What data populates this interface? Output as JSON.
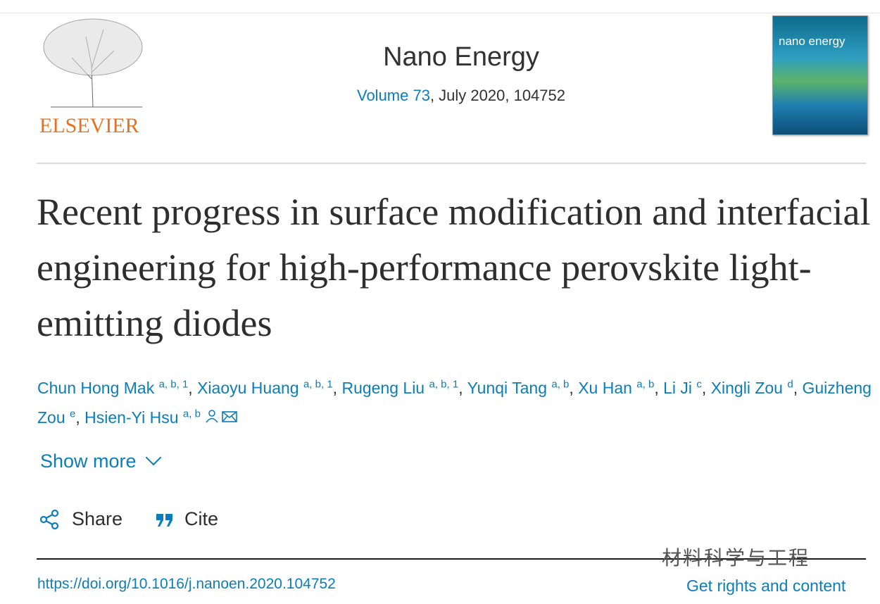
{
  "publisher": {
    "name": "ELSEVIER"
  },
  "journal": {
    "name": "Nano Energy",
    "volume_link": "Volume 73",
    "issue_info": ", July 2020, 104752",
    "cover_text": "nano energy"
  },
  "article": {
    "title": "Recent progress in surface modification and interfacial engineering for high-performance perovskite light-emitting diodes",
    "authors": [
      {
        "name": "Chun Hong Mak",
        "aff": "a, b, 1"
      },
      {
        "name": "Xiaoyu Huang",
        "aff": "a, b, 1"
      },
      {
        "name": "Rugeng Liu",
        "aff": "a, b, 1"
      },
      {
        "name": "Yunqi Tang",
        "aff": "a, b"
      },
      {
        "name": "Xu Han",
        "aff": "a, b"
      },
      {
        "name": "Li Ji",
        "aff": "c"
      },
      {
        "name": "Xingli Zou",
        "aff": "d"
      },
      {
        "name": "Guizheng Zou",
        "aff": "e"
      },
      {
        "name": "Hsien-Yi Hsu",
        "aff": "a, b"
      }
    ],
    "show_more": "Show more",
    "share": "Share",
    "cite": "Cite",
    "doi": "https://doi.org/10.1016/j.nanoen.2020.104752",
    "rights": "Get rights and content"
  },
  "watermark": "材料科学与工程",
  "colors": {
    "link": "#0c7dbb",
    "elsevier": "#e9711c"
  }
}
